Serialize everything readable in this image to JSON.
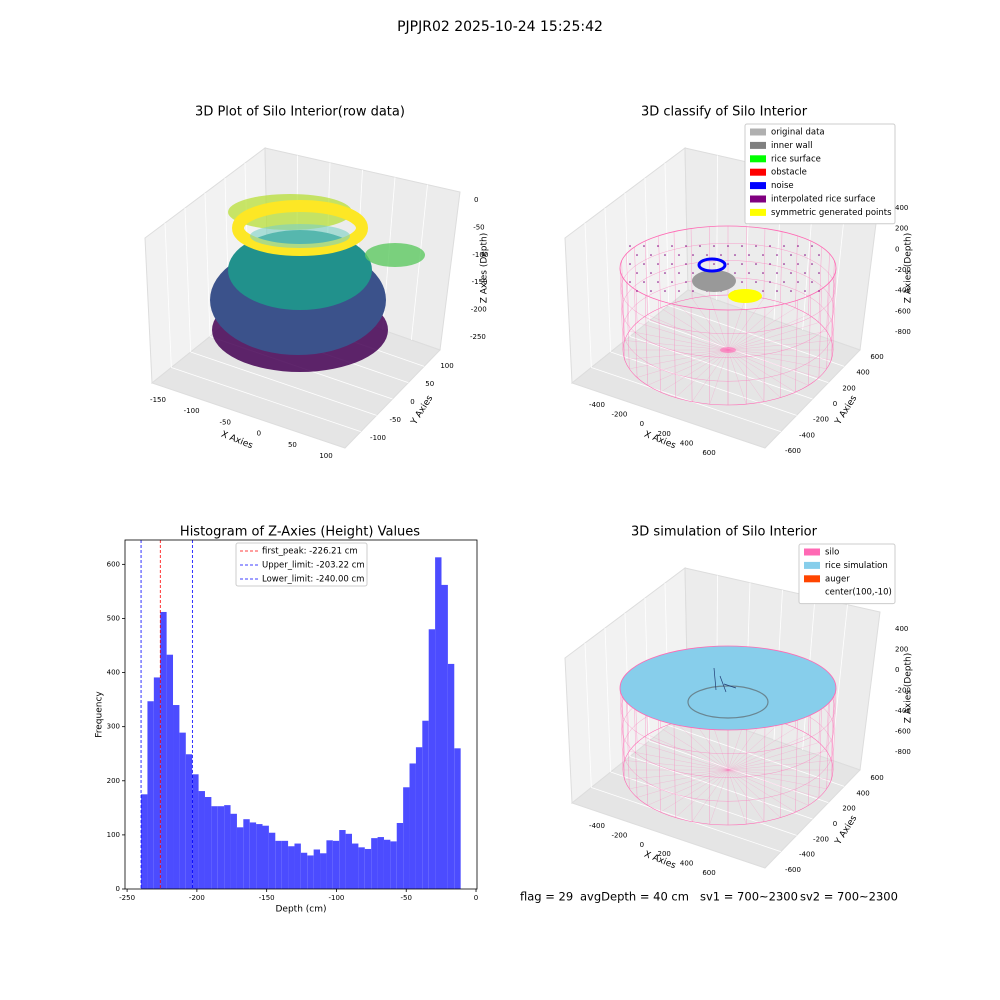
{
  "suptitle": "PJPJR02 2025-10-24 15:25:42",
  "footer": [
    "flag = 29",
    "avgDepth = 40 cm",
    "sv1 = 700~2300",
    "sv2 = 700~2300"
  ],
  "chart_data": [
    {
      "type": "scatter3d",
      "title": "3D Plot of Silo Interior(row data)",
      "xlabel": "X Axies",
      "ylabel": "Y Axies",
      "zlabel": "Z Axies (Depth)",
      "xticks": [
        -150,
        -100,
        -50,
        0,
        50,
        100
      ],
      "yticks": [
        -100,
        -50,
        0,
        50,
        100
      ],
      "zticks": [
        0,
        -50,
        -100,
        -150,
        -200,
        -250
      ]
    },
    {
      "type": "scatter3d",
      "title": "3D classify of Silo Interior",
      "xlabel": "X Axies",
      "ylabel": "Y Axies",
      "zlabel": "Z Axies (Depth)",
      "xticks": [
        -400,
        -200,
        0,
        200,
        400,
        600
      ],
      "yticks": [
        -600,
        -400,
        -200,
        0,
        200,
        400,
        600
      ],
      "zticks": [
        400,
        200,
        0,
        -200,
        -400,
        -600,
        -800
      ],
      "legend": [
        {
          "name": "original data",
          "color": "#b0b0b0"
        },
        {
          "name": "inner wall",
          "color": "#808080"
        },
        {
          "name": "rice surface",
          "color": "#00ff00"
        },
        {
          "name": "obstacle",
          "color": "#ff0000"
        },
        {
          "name": "noise",
          "color": "#0000ff"
        },
        {
          "name": "interpolated rice surface",
          "color": "#800080"
        },
        {
          "name": "symmetric generated points",
          "color": "#ffff00"
        }
      ]
    },
    {
      "type": "histogram",
      "title": "Histogram of Z-Axies (Height) Values",
      "xlabel": "Depth (cm)",
      "ylabel": "Frequency",
      "color": "#4c4cff",
      "bins": [
        -240,
        -235.42,
        -230.84,
        -226.26,
        -221.68,
        -217.1,
        -212.52,
        -207.94,
        -203.36,
        -198.78,
        -194.2,
        -189.62,
        -185.04,
        -180.46,
        -175.88,
        -171.3,
        -166.72,
        -162.14,
        -157.56,
        -152.98,
        -148.4,
        -143.82,
        -139.24,
        -134.66,
        -130.08,
        -125.5,
        -120.92,
        -116.34,
        -111.76,
        -107.18,
        -102.6,
        -98.02,
        -93.44,
        -88.86,
        -84.28,
        -79.7,
        -75.12,
        -70.54,
        -65.96,
        -61.38,
        -56.8,
        -52.22,
        -47.64,
        -43.06,
        -38.48,
        -33.9,
        -29.32,
        -24.74,
        -20.16,
        -15.58,
        -11.0
      ],
      "counts": [
        175,
        347,
        391,
        512,
        433,
        340,
        289,
        249,
        212,
        181,
        170,
        153,
        153,
        155,
        139,
        114,
        129,
        123,
        120,
        117,
        104,
        89,
        89,
        79,
        84,
        67,
        62,
        73,
        66,
        90,
        89,
        109,
        102,
        84,
        77,
        74,
        94,
        96,
        91,
        88,
        122,
        188,
        232,
        262,
        311,
        480,
        613,
        562,
        416,
        260
      ],
      "xlim": [
        -251.5,
        0.7
      ],
      "ylim": [
        0,
        645
      ],
      "xticks": [
        -250,
        -200,
        -150,
        -100,
        -50,
        0
      ],
      "yticks": [
        0,
        100,
        200,
        300,
        400,
        500,
        600
      ],
      "vlines": [
        {
          "label": "first_peak: -226.21 cm",
          "value": -226.21,
          "color": "#ff0000"
        },
        {
          "label": "Upper_limit: -203.22 cm",
          "value": -203.22,
          "color": "#0000ff"
        },
        {
          "label": "Lower_limit: -240.00 cm",
          "value": -240.0,
          "color": "#0000ff"
        }
      ]
    },
    {
      "type": "surface3d",
      "title": "3D simulation of Silo Interior",
      "xlabel": "X Axies",
      "ylabel": "Y Axies",
      "zlabel": "Z Axies (Depth)",
      "xticks": [
        -400,
        -200,
        0,
        200,
        400,
        600
      ],
      "yticks": [
        -600,
        -400,
        -200,
        0,
        200,
        400,
        600
      ],
      "zticks": [
        400,
        200,
        0,
        -200,
        -400,
        -600,
        -800
      ],
      "legend": [
        {
          "name": "silo",
          "color": "#ff69b4"
        },
        {
          "name": "rice simulation",
          "color": "#87ceeb"
        },
        {
          "name": "auger",
          "color": "#ff4500"
        },
        {
          "name": "center(100,-10)"
        }
      ]
    }
  ]
}
